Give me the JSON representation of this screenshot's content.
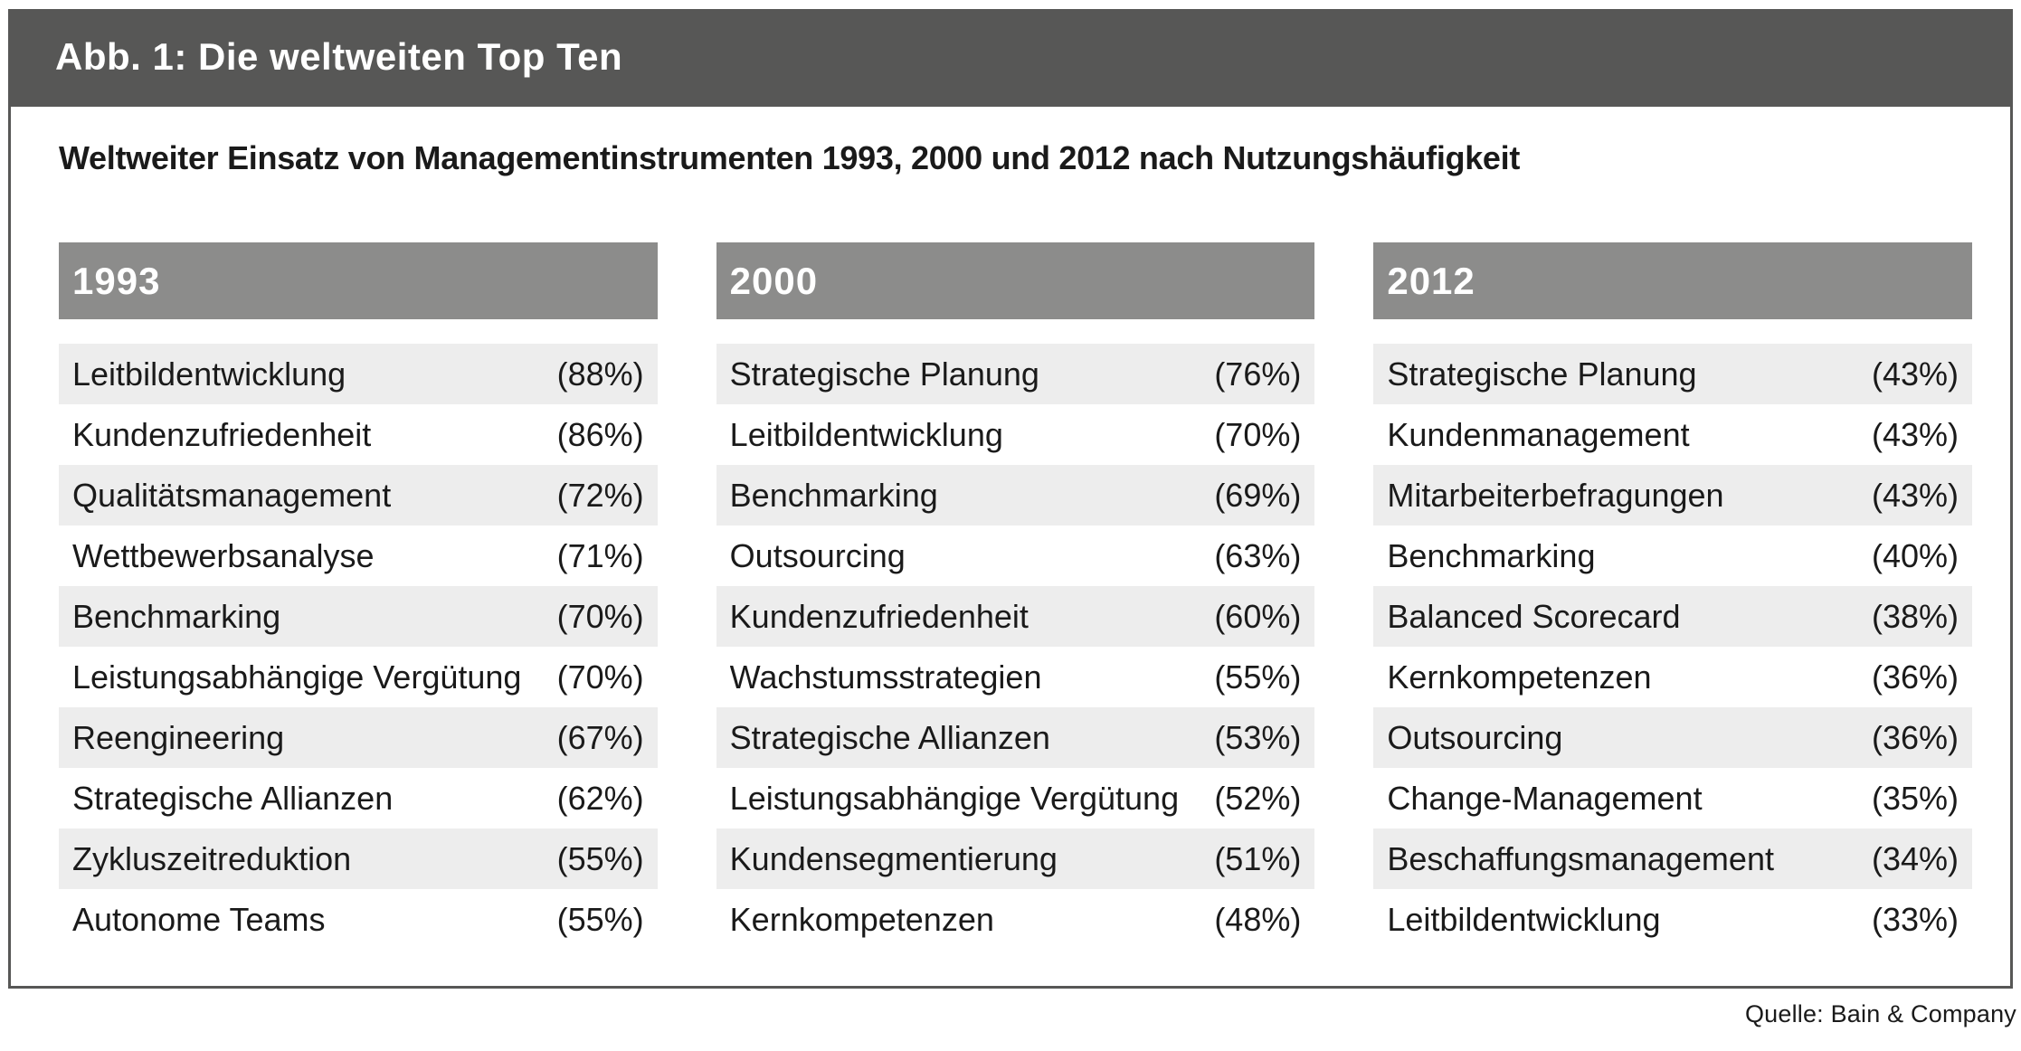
{
  "figure": {
    "title": "Abb. 1: Die weltweiten Top Ten",
    "subtitle": "Weltweiter Einsatz von Managementinstrumenten 1993, 2000 und 2012 nach Nutzungshäufigkeit",
    "source": "Quelle: Bain & Company"
  },
  "colors": {
    "title_bar": "#575756",
    "box_border": "#575756",
    "column_header": "#8c8c8b",
    "row_alt": "#ededed",
    "text": "#1a1a1a"
  },
  "chart_data": {
    "type": "table",
    "title": "Weltweiter Einsatz von Managementinstrumenten 1993, 2000 und 2012 nach Nutzungshäufigkeit",
    "legend_position": "none",
    "columns": [
      {
        "year": "1993",
        "rows": [
          {
            "tool": "Leitbildentwicklung",
            "label": "(88%)",
            "pct": 88
          },
          {
            "tool": "Kundenzufriedenheit",
            "label": "(86%)",
            "pct": 86
          },
          {
            "tool": "Qualitätsmanagement",
            "label": "(72%)",
            "pct": 72
          },
          {
            "tool": "Wettbewerbsanalyse",
            "label": "(71%)",
            "pct": 71
          },
          {
            "tool": "Benchmarking",
            "label": "(70%)",
            "pct": 70
          },
          {
            "tool": "Leistungsabhängige Vergütung",
            "label": "(70%)",
            "pct": 70
          },
          {
            "tool": "Reengineering",
            "label": "(67%)",
            "pct": 67
          },
          {
            "tool": "Strategische Allianzen",
            "label": "(62%)",
            "pct": 62
          },
          {
            "tool": "Zykluszeitreduktion",
            "label": "(55%)",
            "pct": 55
          },
          {
            "tool": "Autonome Teams",
            "label": "(55%)",
            "pct": 55
          }
        ]
      },
      {
        "year": "2000",
        "rows": [
          {
            "tool": "Strategische Planung",
            "label": "(76%)",
            "pct": 76
          },
          {
            "tool": "Leitbildentwicklung",
            "label": "(70%)",
            "pct": 70
          },
          {
            "tool": "Benchmarking",
            "label": "(69%)",
            "pct": 69
          },
          {
            "tool": "Outsourcing",
            "label": "(63%)",
            "pct": 63
          },
          {
            "tool": "Kundenzufriedenheit",
            "label": "(60%)",
            "pct": 60
          },
          {
            "tool": "Wachstumsstrategien",
            "label": "(55%)",
            "pct": 55
          },
          {
            "tool": "Strategische Allianzen",
            "label": "(53%)",
            "pct": 53
          },
          {
            "tool": "Leistungsabhängige Vergütung",
            "label": "(52%)",
            "pct": 52
          },
          {
            "tool": "Kundensegmentierung",
            "label": "(51%)",
            "pct": 51
          },
          {
            "tool": "Kernkompetenzen",
            "label": "(48%)",
            "pct": 48
          }
        ]
      },
      {
        "year": "2012",
        "rows": [
          {
            "tool": "Strategische Planung",
            "label": "(43%)",
            "pct": 43
          },
          {
            "tool": "Kundenmanagement",
            "label": "(43%)",
            "pct": 43
          },
          {
            "tool": "Mitarbeiterbefragungen",
            "label": "(43%)",
            "pct": 43
          },
          {
            "tool": "Benchmarking",
            "label": "(40%)",
            "pct": 40
          },
          {
            "tool": "Balanced Scorecard",
            "label": "(38%)",
            "pct": 38
          },
          {
            "tool": "Kernkompetenzen",
            "label": "(36%)",
            "pct": 36
          },
          {
            "tool": "Outsourcing",
            "label": "(36%)",
            "pct": 36
          },
          {
            "tool": "Change-Management",
            "label": "(35%)",
            "pct": 35
          },
          {
            "tool": "Beschaffungsmanagement",
            "label": "(34%)",
            "pct": 34
          },
          {
            "tool": "Leitbildentwicklung",
            "label": "(33%)",
            "pct": 33
          }
        ]
      }
    ]
  }
}
